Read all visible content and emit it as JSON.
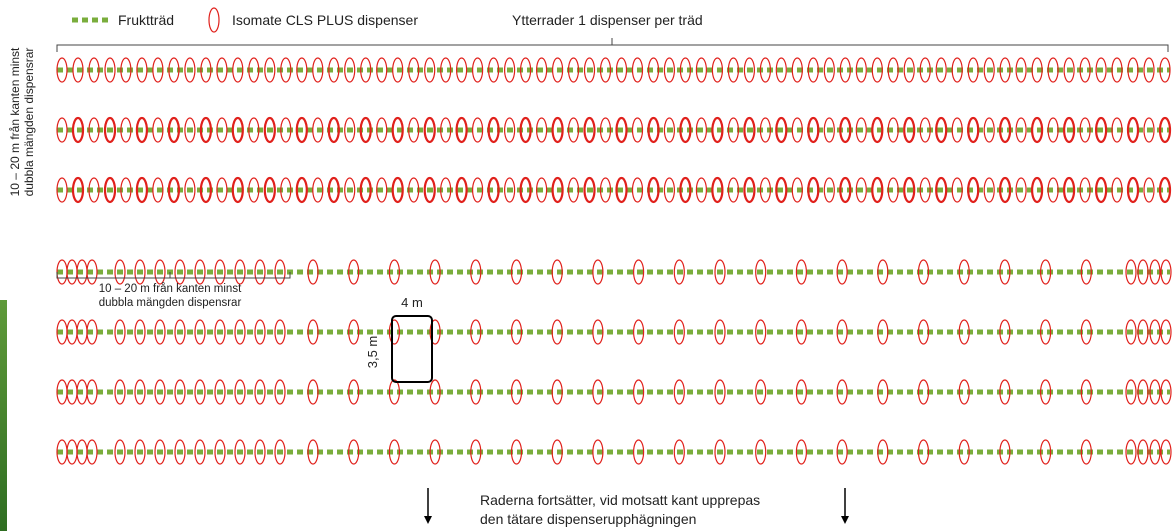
{
  "legend": {
    "tree_label": "Fruktträd",
    "dispenser_label": "Isomate CLS PLUS dispenser"
  },
  "top_label": "Ytterrader 1 dispenser per träd",
  "side_label": {
    "line1": "10 – 20 m från kanten minst",
    "line2": "dubbla mängden dispensrar"
  },
  "inner_label": {
    "line1": "10 – 20 m från kanten minst",
    "line2": "dubbla mängden dispensrar"
  },
  "spacing": {
    "row_spacing": "4 m",
    "tree_spacing": "3,5 m"
  },
  "footer": {
    "line1": "Raderna fortsätter, vid motsatt kant upprepas",
    "line2": "den tätare dispenserupphägningen"
  },
  "colors": {
    "tree_row": "#7aad3c",
    "dispenser": "#e0201b",
    "text": "#222222",
    "accent_bar": "#3c7d2a"
  },
  "rows": {
    "outer_count": 3,
    "inner_count": 4,
    "outer_dispensers_per_row": 70
  }
}
